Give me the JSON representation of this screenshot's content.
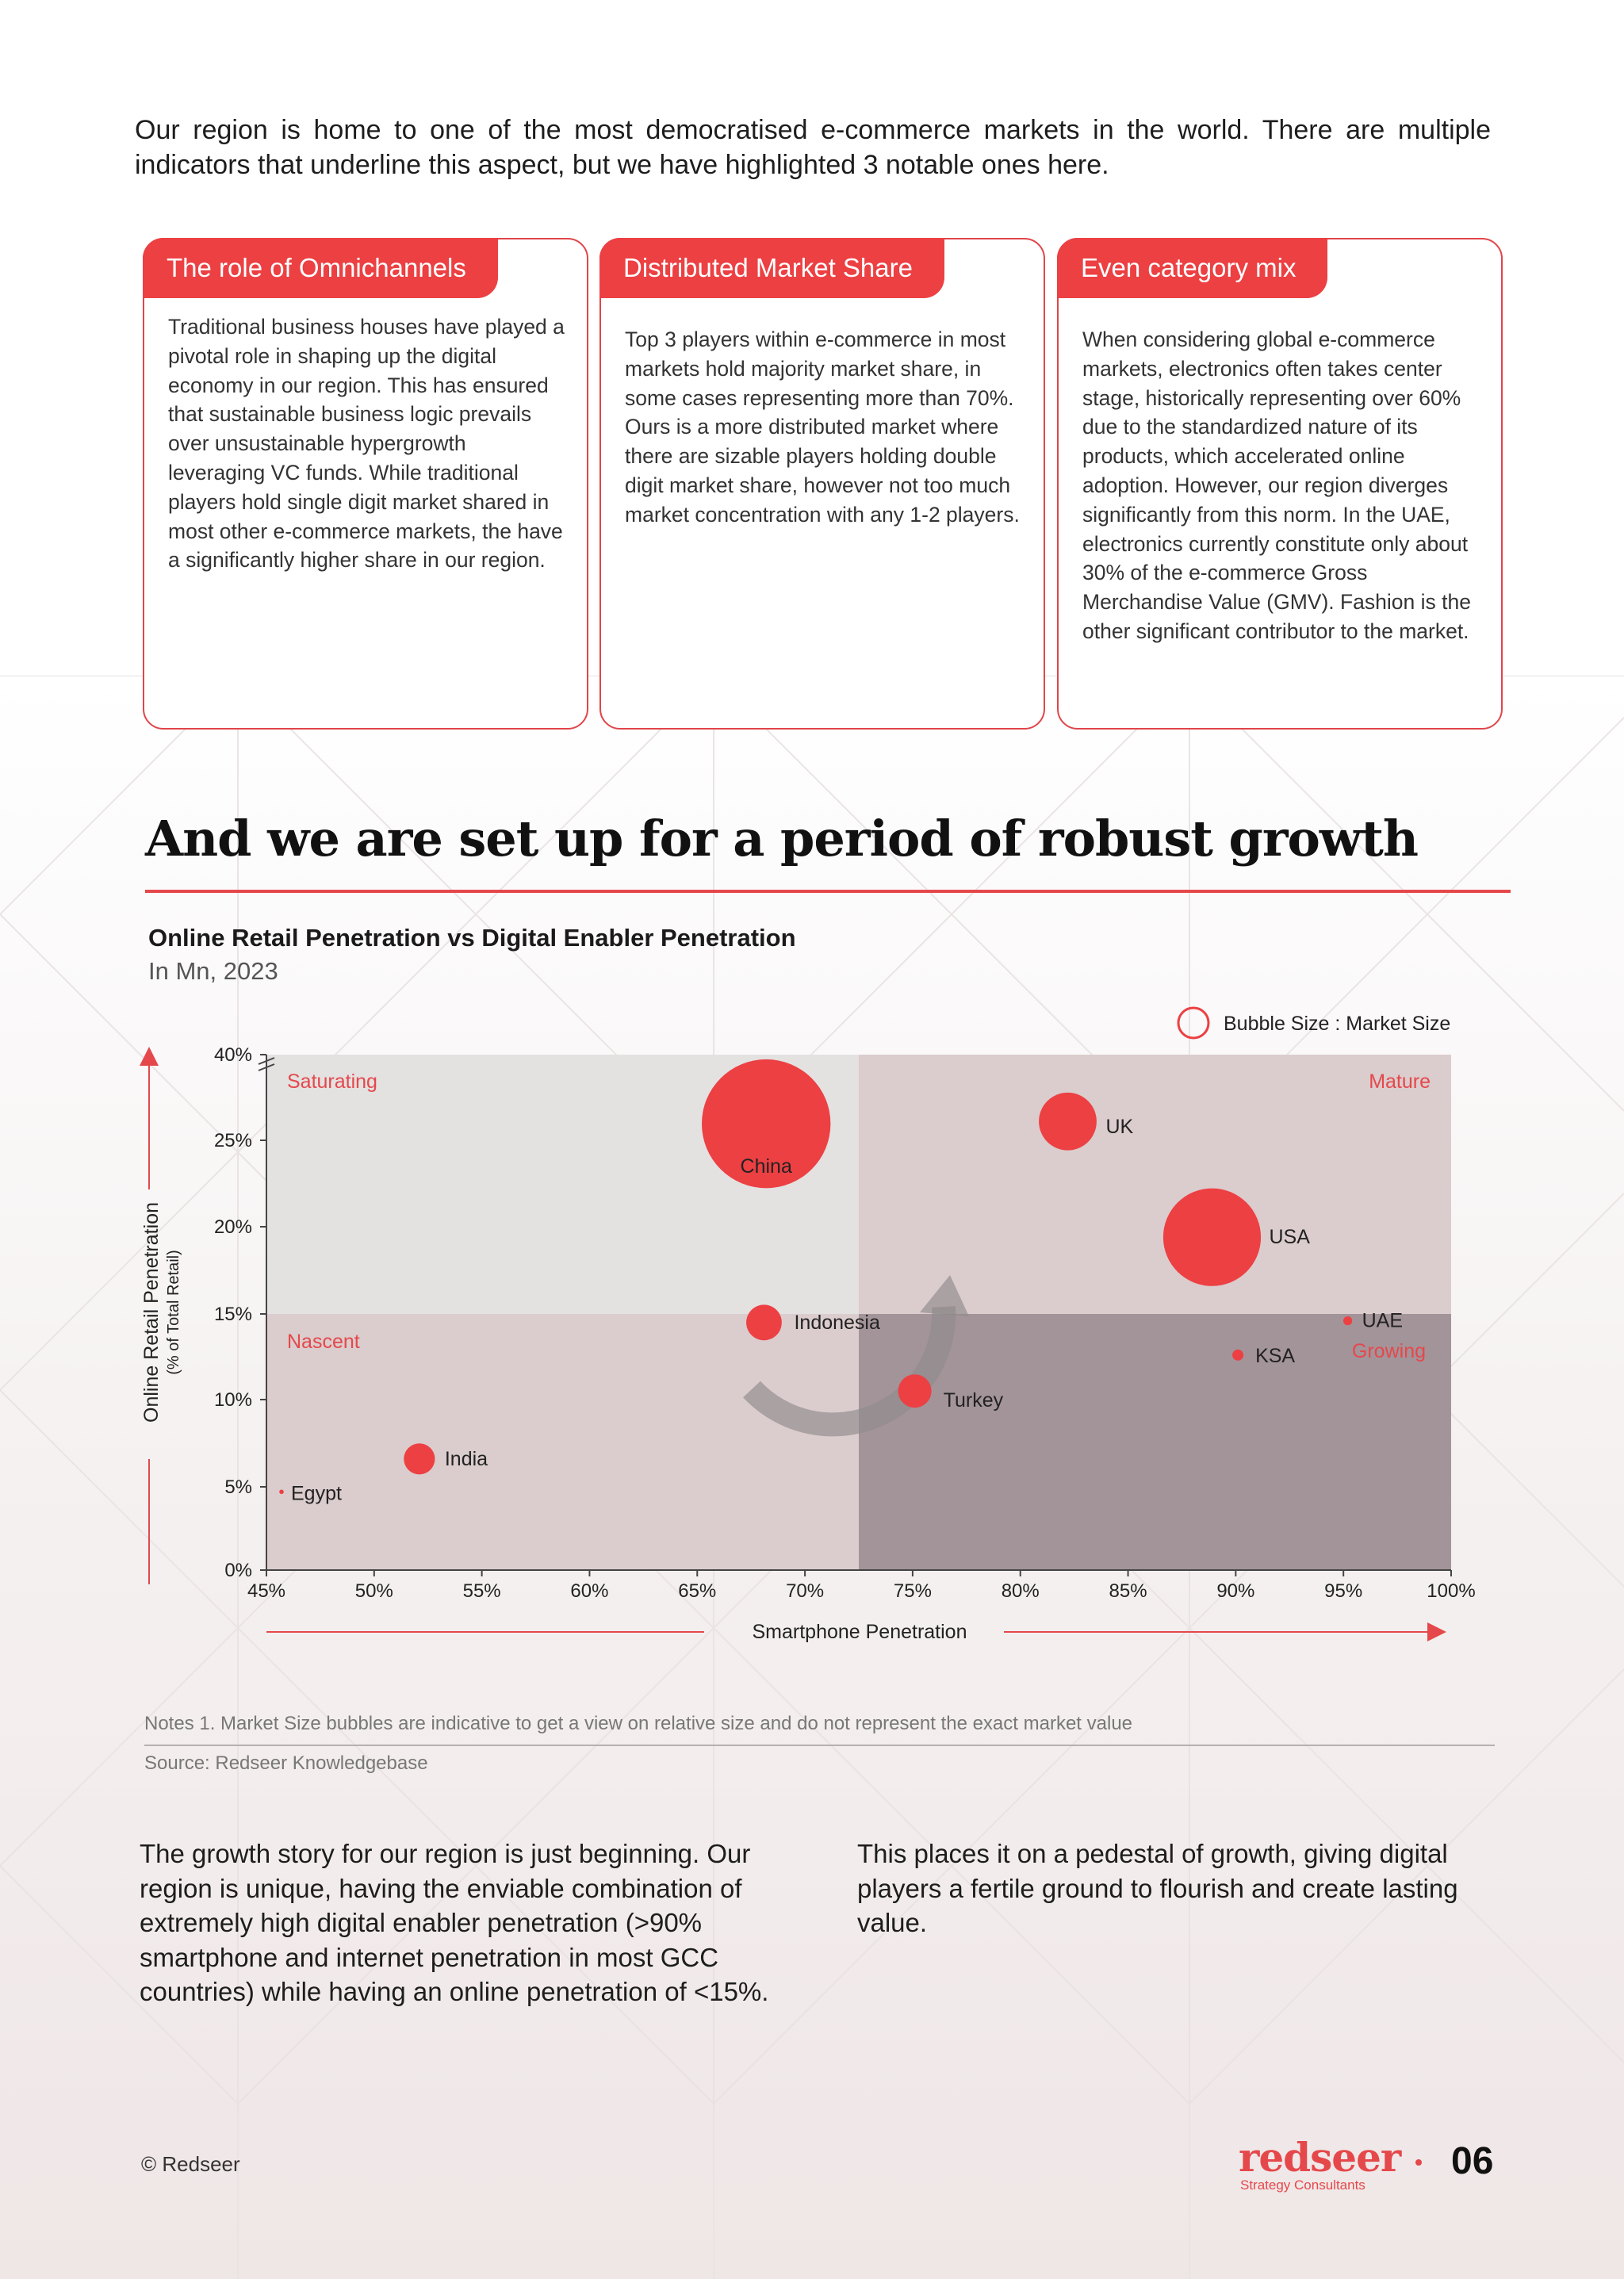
{
  "intro": "Our region is home to one of the most democratised e-commerce markets in the world. There are multiple indicators that underline this aspect, but we have highlighted 3 notable ones here.",
  "cards": [
    {
      "title": "The role of Omnichannels",
      "text": "Traditional business houses have played a pivotal role in shaping up the digital economy in our region. This has ensured that sustainable business logic prevails over unsustainable hypergrowth leveraging VC funds. While traditional players hold single digit market shared in most other e-commerce markets, the have a significantly higher share in our region."
    },
    {
      "title": "Distributed Market Share",
      "text": "Top 3 players within e-commerce in most markets hold majority market share, in some cases representing more than 70%. Ours is a more distributed market where there are sizable players holding double digit market share, however not too much market concentration with any 1-2 players."
    },
    {
      "title": "Even category mix",
      "text": "When considering global e-commerce markets, electronics often takes center stage, historically representing over 60% due to the standardized nature of its products, which accelerated online adoption. However, our region diverges significantly from this norm. In the UAE, electronics currently constitute only about 30% of the e-commerce Gross Merchandise Value (GMV). Fashion is the other significant contributor to the market."
    }
  ],
  "heading": "And we are set up for a period of robust growth",
  "chart_title": "Online Retail Penetration vs Digital Enabler Penetration",
  "chart_subtitle": "In Mn, 2023",
  "chart_data": {
    "type": "scatter",
    "title": "Online Retail Penetration vs Digital Enabler Penetration",
    "subtitle": "In Mn, 2023",
    "xlabel": "Smartphone Penetration",
    "ylabel": "Online Retail Penetration",
    "ylabel_sub": "(% of Total Retail)",
    "xlim": [
      45,
      100
    ],
    "x_ticks": [
      "45%",
      "50%",
      "55%",
      "60%",
      "65%",
      "70%",
      "75%",
      "80%",
      "85%",
      "90%",
      "95%",
      "100%"
    ],
    "y_ticks": [
      "0%",
      "5%",
      "10%",
      "15%",
      "20%",
      "25%",
      "40%"
    ],
    "y_axis_break": "between 25% and 40%",
    "legend": "Bubble Size : Market Size",
    "legend_position": "top-right",
    "quadrants": [
      {
        "name": "Saturating",
        "position": "top-left",
        "color": "#e4e1e1"
      },
      {
        "name": "Mature",
        "position": "top-right",
        "color": "#dbcccd"
      },
      {
        "name": "Nascent",
        "position": "bottom-left",
        "color": "#dbcccd"
      },
      {
        "name": "Growing",
        "position": "bottom-right",
        "color": "#a3949a"
      }
    ],
    "x_split": 72.5,
    "y_split": 15,
    "points": [
      {
        "label": "China",
        "x": 68.2,
        "y": 27.9,
        "size": 58
      },
      {
        "label": "UK",
        "x": 82.2,
        "y": 28.3,
        "size": 26
      },
      {
        "label": "USA",
        "x": 88.9,
        "y": 19.4,
        "size": 44
      },
      {
        "label": "Indonesia",
        "x": 68.1,
        "y": 14.5,
        "size": 16
      },
      {
        "label": "UAE",
        "x": 95.2,
        "y": 14.6,
        "size": 4
      },
      {
        "label": "KSA",
        "x": 90.1,
        "y": 12.6,
        "size": 5
      },
      {
        "label": "Turkey",
        "x": 75.1,
        "y": 10.5,
        "size": 15
      },
      {
        "label": "India",
        "x": 52.1,
        "y": 6.6,
        "size": 14
      },
      {
        "label": "Egypt",
        "x": 45.7,
        "y": 4.7,
        "size": 2
      }
    ],
    "colors": {
      "bubble": "#ec4043",
      "arrow": "#8f8a8b",
      "axis_arrow": "#e5484b"
    }
  },
  "notes": "Notes 1. Market Size bubbles are indicative to get a view on relative size and do not represent the exact market value",
  "source": "Source: Redseer Knowledgebase",
  "para_left": "The growth story for our region is just beginning. Our region is unique, having the enviable combination of extremely high digital enabler penetration (>90% smartphone and internet penetration in most GCC countries) while having an online penetration of <15%.",
  "para_right": "This places it on a pedestal of growth, giving digital players a fertile ground to flourish and create lasting value.",
  "footer": {
    "copyright": "© Redseer",
    "logo": "redseer",
    "logo_sub": "Strategy Consultants",
    "page": "06"
  }
}
